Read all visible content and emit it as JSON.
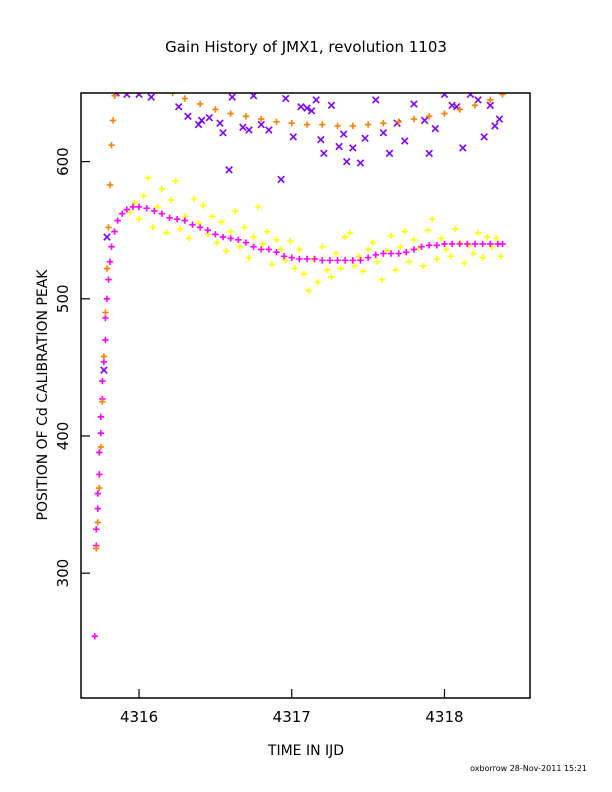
{
  "chart_data": {
    "type": "scatter",
    "title": "Gain History of JMX1, revolution 1103",
    "xlabel": "TIME IN IJD",
    "ylabel": "POSITION OF Cd CALIBRATION PEAK",
    "xlim": [
      4315.62,
      4318.56
    ],
    "ylim": [
      209,
      650
    ],
    "x_ticks": [
      "4316",
      "4317",
      "4318"
    ],
    "y_ticks": [
      "300",
      "400",
      "500",
      "600"
    ],
    "x_tick_values": [
      4316,
      4317,
      4318
    ],
    "y_tick_values": [
      300,
      400,
      500,
      600
    ],
    "grid": false,
    "legend": "none",
    "credit": "oxborrow 28-Nov-2011 15:21",
    "series": [
      {
        "marker": "cross",
        "color": "#ffff00",
        "points": [
          [
            4315.94,
            563
          ],
          [
            4315.97,
            570
          ],
          [
            4316.0,
            558
          ],
          [
            4316.03,
            575
          ],
          [
            4316.06,
            588
          ],
          [
            4316.09,
            552
          ],
          [
            4316.12,
            567
          ],
          [
            4316.15,
            580
          ],
          [
            4316.18,
            548
          ],
          [
            4316.21,
            572
          ],
          [
            4316.24,
            586
          ],
          [
            4316.27,
            551
          ],
          [
            4316.3,
            560
          ],
          [
            4316.33,
            544
          ],
          [
            4316.36,
            573
          ],
          [
            4316.39,
            555
          ],
          [
            4316.42,
            568
          ],
          [
            4316.45,
            547
          ],
          [
            4316.48,
            560
          ],
          [
            4316.51,
            541
          ],
          [
            4316.54,
            556
          ],
          [
            4316.57,
            535
          ],
          [
            4316.6,
            549
          ],
          [
            4316.63,
            564
          ],
          [
            4316.66,
            538
          ],
          [
            4316.69,
            552
          ],
          [
            4316.72,
            530
          ],
          [
            4316.75,
            545
          ],
          [
            4316.78,
            567
          ],
          [
            4316.81,
            540
          ],
          [
            4316.84,
            549
          ],
          [
            4316.87,
            525
          ],
          [
            4316.9,
            543
          ],
          [
            4316.93,
            536
          ],
          [
            4316.96,
            528
          ],
          [
            4316.99,
            542
          ],
          [
            4317.02,
            522
          ],
          [
            4317.05,
            536
          ],
          [
            4317.08,
            518
          ],
          [
            4317.11,
            506
          ],
          [
            4317.14,
            529
          ],
          [
            4317.17,
            512
          ],
          [
            4317.2,
            538
          ],
          [
            4317.23,
            521
          ],
          [
            4317.26,
            516
          ],
          [
            4317.29,
            533
          ],
          [
            4317.32,
            522
          ],
          [
            4317.35,
            545
          ],
          [
            4317.38,
            548
          ],
          [
            4317.41,
            524
          ],
          [
            4317.44,
            531
          ],
          [
            4317.47,
            520
          ],
          [
            4317.5,
            536
          ],
          [
            4317.53,
            541
          ],
          [
            4317.56,
            527
          ],
          [
            4317.59,
            514
          ],
          [
            4317.62,
            535
          ],
          [
            4317.65,
            546
          ],
          [
            4317.68,
            521
          ],
          [
            4317.71,
            538
          ],
          [
            4317.74,
            549
          ],
          [
            4317.77,
            527
          ],
          [
            4317.8,
            543
          ],
          [
            4317.83,
            537
          ],
          [
            4317.86,
            524
          ],
          [
            4317.89,
            550
          ],
          [
            4317.92,
            558
          ],
          [
            4317.95,
            529
          ],
          [
            4317.98,
            544
          ],
          [
            4318.01,
            536
          ],
          [
            4318.04,
            531
          ],
          [
            4318.07,
            551
          ],
          [
            4318.1,
            541
          ],
          [
            4318.13,
            526
          ],
          [
            4318.16,
            539
          ],
          [
            4318.19,
            533
          ],
          [
            4318.22,
            548
          ],
          [
            4318.25,
            530
          ],
          [
            4318.28,
            545
          ],
          [
            4318.31,
            538
          ],
          [
            4318.34,
            544
          ],
          [
            4318.37,
            531
          ]
        ]
      },
      {
        "marker": "x",
        "color": "#8000ff",
        "points": [
          [
            4315.77,
            448
          ],
          [
            4315.79,
            545
          ],
          [
            4315.85,
            650
          ],
          [
            4315.92,
            649
          ],
          [
            4316.0,
            649
          ],
          [
            4316.08,
            647
          ],
          [
            4316.26,
            640
          ],
          [
            4316.32,
            633
          ],
          [
            4316.39,
            627
          ],
          [
            4316.41,
            630
          ],
          [
            4316.46,
            632
          ],
          [
            4316.53,
            628
          ],
          [
            4316.55,
            621
          ],
          [
            4316.59,
            594
          ],
          [
            4316.61,
            647
          ],
          [
            4316.68,
            625
          ],
          [
            4316.72,
            623
          ],
          [
            4316.75,
            648
          ],
          [
            4316.8,
            627
          ],
          [
            4316.85,
            623
          ],
          [
            4316.93,
            587
          ],
          [
            4316.96,
            646
          ],
          [
            4317.01,
            618
          ],
          [
            4317.06,
            640
          ],
          [
            4317.1,
            639
          ],
          [
            4317.13,
            637
          ],
          [
            4317.16,
            645
          ],
          [
            4317.19,
            616
          ],
          [
            4317.21,
            606
          ],
          [
            4317.26,
            641
          ],
          [
            4317.31,
            611
          ],
          [
            4317.34,
            620
          ],
          [
            4317.36,
            600
          ],
          [
            4317.4,
            610
          ],
          [
            4317.45,
            599
          ],
          [
            4317.48,
            617
          ],
          [
            4317.55,
            645
          ],
          [
            4317.6,
            621
          ],
          [
            4317.64,
            606
          ],
          [
            4317.69,
            628
          ],
          [
            4317.74,
            615
          ],
          [
            4317.8,
            642
          ],
          [
            4317.87,
            630
          ],
          [
            4317.9,
            606
          ],
          [
            4317.94,
            624
          ],
          [
            4318.0,
            649
          ],
          [
            4318.05,
            641
          ],
          [
            4318.08,
            640
          ],
          [
            4318.12,
            610
          ],
          [
            4318.17,
            649
          ],
          [
            4318.22,
            645
          ],
          [
            4318.26,
            618
          ],
          [
            4318.3,
            641
          ],
          [
            4318.33,
            626
          ],
          [
            4318.36,
            631
          ]
        ]
      },
      {
        "marker": "cross",
        "color": "#ff00ff",
        "points": [
          [
            4315.71,
            254
          ],
          [
            4315.72,
            320
          ],
          [
            4315.72,
            332
          ],
          [
            4315.73,
            347
          ],
          [
            4315.73,
            358
          ],
          [
            4315.74,
            372
          ],
          [
            4315.74,
            388
          ],
          [
            4315.75,
            402
          ],
          [
            4315.75,
            414
          ],
          [
            4315.76,
            427
          ],
          [
            4315.76,
            440
          ],
          [
            4315.77,
            454
          ],
          [
            4315.78,
            470
          ],
          [
            4315.78,
            486
          ],
          [
            4315.79,
            500
          ],
          [
            4315.8,
            514
          ],
          [
            4315.81,
            527
          ],
          [
            4315.82,
            538
          ],
          [
            4315.84,
            549
          ],
          [
            4315.86,
            557
          ],
          [
            4315.89,
            562
          ],
          [
            4315.92,
            565
          ],
          [
            4315.96,
            567
          ],
          [
            4316.0,
            567
          ],
          [
            4316.05,
            566
          ],
          [
            4316.1,
            564
          ],
          [
            4316.15,
            562
          ],
          [
            4316.2,
            559
          ],
          [
            4316.25,
            558
          ],
          [
            4316.3,
            557
          ],
          [
            4316.35,
            554
          ],
          [
            4316.4,
            552
          ],
          [
            4316.45,
            550
          ],
          [
            4316.5,
            547
          ],
          [
            4316.55,
            545
          ],
          [
            4316.6,
            544
          ],
          [
            4316.65,
            543
          ],
          [
            4316.7,
            541
          ],
          [
            4316.75,
            538
          ],
          [
            4316.8,
            536
          ],
          [
            4316.85,
            536
          ],
          [
            4316.9,
            534
          ],
          [
            4316.95,
            531
          ],
          [
            4317.0,
            530
          ],
          [
            4317.05,
            529
          ],
          [
            4317.1,
            529
          ],
          [
            4317.15,
            529
          ],
          [
            4317.2,
            528
          ],
          [
            4317.25,
            528
          ],
          [
            4317.3,
            528
          ],
          [
            4317.35,
            528
          ],
          [
            4317.4,
            528
          ],
          [
            4317.45,
            528
          ],
          [
            4317.5,
            530
          ],
          [
            4317.55,
            532
          ],
          [
            4317.6,
            533
          ],
          [
            4317.65,
            533
          ],
          [
            4317.7,
            533
          ],
          [
            4317.75,
            534
          ],
          [
            4317.8,
            536
          ],
          [
            4317.85,
            538
          ],
          [
            4317.9,
            539
          ],
          [
            4317.95,
            539
          ],
          [
            4318.0,
            540
          ],
          [
            4318.05,
            540
          ],
          [
            4318.1,
            540
          ],
          [
            4318.15,
            540
          ],
          [
            4318.2,
            540
          ],
          [
            4318.25,
            540
          ],
          [
            4318.3,
            540
          ],
          [
            4318.35,
            540
          ],
          [
            4318.38,
            540
          ]
        ]
      },
      {
        "marker": "cross",
        "color": "#ff8000",
        "points": [
          [
            4315.72,
            318
          ],
          [
            4315.73,
            337
          ],
          [
            4315.74,
            362
          ],
          [
            4315.75,
            392
          ],
          [
            4315.76,
            425
          ],
          [
            4315.77,
            458
          ],
          [
            4315.78,
            490
          ],
          [
            4315.79,
            522
          ],
          [
            4315.8,
            552
          ],
          [
            4315.81,
            583
          ],
          [
            4315.82,
            612
          ],
          [
            4315.83,
            630
          ],
          [
            4315.84,
            648
          ],
          [
            4316.22,
            650
          ],
          [
            4316.3,
            646
          ],
          [
            4316.4,
            642
          ],
          [
            4316.5,
            638
          ],
          [
            4316.6,
            635
          ],
          [
            4316.7,
            633
          ],
          [
            4316.8,
            631
          ],
          [
            4316.9,
            629
          ],
          [
            4317.0,
            628
          ],
          [
            4317.1,
            627
          ],
          [
            4317.2,
            627
          ],
          [
            4317.3,
            626
          ],
          [
            4317.4,
            626
          ],
          [
            4317.5,
            627
          ],
          [
            4317.6,
            628
          ],
          [
            4317.7,
            629
          ],
          [
            4317.8,
            631
          ],
          [
            4317.9,
            633
          ],
          [
            4318.0,
            635
          ],
          [
            4318.1,
            638
          ],
          [
            4318.2,
            641
          ],
          [
            4318.3,
            645
          ],
          [
            4318.38,
            649
          ]
        ]
      }
    ]
  }
}
